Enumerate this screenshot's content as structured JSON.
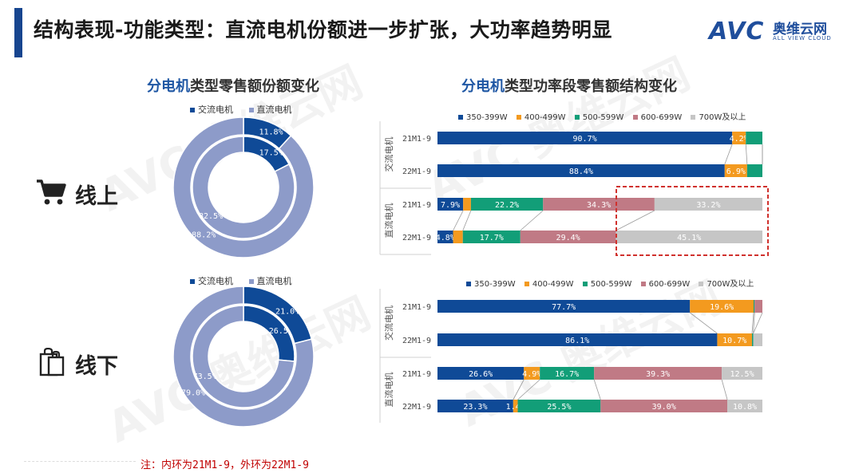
{
  "header": {
    "title": "结构表现-功能类型：直流电机份额进一步扩张，大功率趋势明显",
    "logo_text": "AVC",
    "logo_cn": "奥维云网",
    "logo_en": "ALL VIEW CLOUD"
  },
  "left": {
    "title_highlight": "分电机",
    "title_rest": "类型零售额份额变化",
    "legend": [
      "交流电机",
      "直流电机"
    ],
    "online_label": "线上",
    "offline_label": "线下"
  },
  "right": {
    "title_highlight": "分电机",
    "title_rest": "类型功率段零售额结构变化",
    "legend": [
      "350-399W",
      "400-499W",
      "500-599W",
      "600-699W",
      "700W及以上"
    ],
    "group_labels": [
      "交流电机",
      "直流电机"
    ]
  },
  "note": "注：内环为21M1-9，外环为22M1-9",
  "colors": {
    "ac": "#0f4a97",
    "dc": "#8d9bc9",
    "segments": [
      "#0f4a97",
      "#f39a1f",
      "#129e78",
      "#c07a85",
      "#c6c6c6"
    ]
  },
  "chart_data": [
    {
      "type": "pie",
      "name": "线上",
      "rings": [
        {
          "period": "21M1-9",
          "ring": "inner",
          "values": {
            "交流电机": 17.5,
            "直流电机": 82.5
          }
        },
        {
          "period": "22M1-9",
          "ring": "outer",
          "values": {
            "交流电机": 11.8,
            "直流电机": 88.2
          }
        }
      ]
    },
    {
      "type": "pie",
      "name": "线下",
      "rings": [
        {
          "period": "21M1-9",
          "ring": "inner",
          "values": {
            "交流电机": 26.5,
            "直流电机": 73.5
          }
        },
        {
          "period": "22M1-9",
          "ring": "outer",
          "values": {
            "交流电机": 21.0,
            "直流电机": 79.0
          }
        }
      ]
    },
    {
      "type": "bar",
      "name": "线上",
      "categories": [
        "350-399W",
        "400-499W",
        "500-599W",
        "600-699W",
        "700W及以上"
      ],
      "rows": [
        {
          "group": "交流电机",
          "period": "21M1-9",
          "values": [
            90.7,
            4.2,
            5.1,
            0,
            0
          ],
          "labels": [
            "90.7%",
            "4.2%",
            "",
            "",
            ""
          ]
        },
        {
          "group": "交流电机",
          "period": "22M1-9",
          "values": [
            88.4,
            6.9,
            4.7,
            0,
            0
          ],
          "labels": [
            "88.4%",
            "6.9%",
            "",
            "",
            ""
          ]
        },
        {
          "group": "直流电机",
          "period": "21M1-9",
          "values": [
            7.9,
            2.4,
            22.2,
            34.3,
            33.2
          ],
          "labels": [
            "7.9%",
            "",
            "22.2%",
            "34.3%",
            "33.2%"
          ]
        },
        {
          "group": "直流电机",
          "period": "22M1-9",
          "values": [
            4.8,
            3.0,
            17.7,
            29.4,
            45.1
          ],
          "labels": [
            "4.8%",
            "",
            "17.7%",
            "29.4%",
            "45.1%"
          ]
        }
      ]
    },
    {
      "type": "bar",
      "name": "线下",
      "categories": [
        "350-399W",
        "400-499W",
        "500-599W",
        "600-699W",
        "700W及以上"
      ],
      "rows": [
        {
          "group": "交流电机",
          "period": "21M1-9",
          "values": [
            77.7,
            19.6,
            0.3,
            2.4,
            0
          ],
          "labels": [
            "77.7%",
            "19.6%",
            "",
            "",
            ""
          ]
        },
        {
          "group": "交流电机",
          "period": "22M1-9",
          "values": [
            86.1,
            10.7,
            0.4,
            0,
            2.8
          ],
          "labels": [
            "86.1%",
            "10.7%",
            "",
            "",
            ""
          ]
        },
        {
          "group": "直流电机",
          "period": "21M1-9",
          "values": [
            26.6,
            4.9,
            16.7,
            39.3,
            12.5
          ],
          "labels": [
            "26.6%",
            "4.9%",
            "16.7%",
            "39.3%",
            "12.5%"
          ]
        },
        {
          "group": "直流电机",
          "period": "22M1-9",
          "values": [
            23.3,
            1.4,
            25.5,
            39.0,
            10.8
          ],
          "labels": [
            "23.3%",
            "1.4%",
            "25.5%",
            "39.0%",
            "10.8%"
          ]
        }
      ]
    }
  ]
}
